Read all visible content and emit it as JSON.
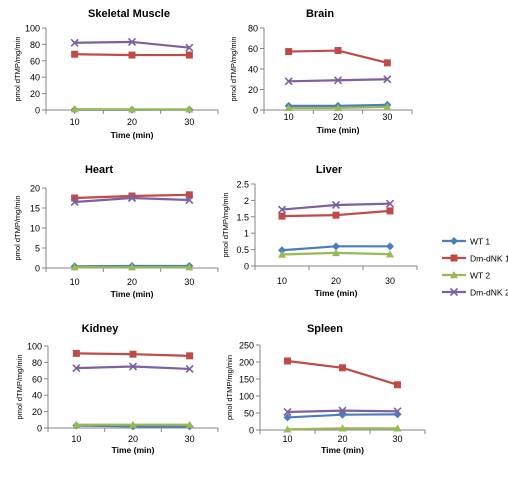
{
  "x_label": "Time (min)",
  "y_label": "pmol dTMP/mg/min",
  "legend": [
    {
      "name": "WT 1",
      "color": "#4a7ebb",
      "marker": "diamond"
    },
    {
      "name": "Dm-dNK 1",
      "color": "#be4b48",
      "marker": "square"
    },
    {
      "name": "WT 2",
      "color": "#98b954",
      "marker": "triangle"
    },
    {
      "name": "Dm-dNK 2",
      "color": "#7d60a0",
      "marker": "x"
    }
  ],
  "chart_data": [
    {
      "type": "line",
      "title": "Skeletal Muscle",
      "x": [
        10,
        20,
        30
      ],
      "ylim": [
        0,
        100
      ],
      "yticks": [
        0,
        20,
        40,
        60,
        80,
        100
      ],
      "xlabel": "Time (min)",
      "ylabel": "pmol dTMP/mg/min",
      "series": [
        {
          "name": "WT 1",
          "values": [
            0.5,
            0.3,
            0.4
          ]
        },
        {
          "name": "Dm-dNK 1",
          "values": [
            68,
            67,
            67
          ]
        },
        {
          "name": "WT 2",
          "values": [
            1,
            0.8,
            0.8
          ]
        },
        {
          "name": "Dm-dNK 2",
          "values": [
            82,
            83,
            76
          ]
        }
      ]
    },
    {
      "type": "line",
      "title": "Brain",
      "x": [
        10,
        20,
        30
      ],
      "ylim": [
        0,
        80
      ],
      "yticks": [
        0,
        20,
        40,
        60,
        80
      ],
      "xlabel": "Time (min)",
      "ylabel": "pmol dTMP/mg/min",
      "series": [
        {
          "name": "WT 1",
          "values": [
            4,
            4,
            5
          ]
        },
        {
          "name": "Dm-dNK 1",
          "values": [
            57,
            58,
            46
          ]
        },
        {
          "name": "WT 2",
          "values": [
            2,
            2,
            3
          ]
        },
        {
          "name": "Dm-dNK 2",
          "values": [
            28,
            29,
            30
          ]
        }
      ]
    },
    {
      "type": "line",
      "title": "Heart",
      "x": [
        10,
        20,
        30
      ],
      "ylim": [
        0,
        20
      ],
      "yticks": [
        0,
        5,
        10,
        15,
        20
      ],
      "xlabel": "Time (min)",
      "ylabel": "pmol dTMP/mg/min",
      "series": [
        {
          "name": "WT 1",
          "values": [
            0.4,
            0.5,
            0.5
          ]
        },
        {
          "name": "Dm-dNK 1",
          "values": [
            17.5,
            18,
            18.3
          ]
        },
        {
          "name": "WT 2",
          "values": [
            0.2,
            0.2,
            0.2
          ]
        },
        {
          "name": "Dm-dNK 2",
          "values": [
            16.5,
            17.5,
            17
          ]
        }
      ]
    },
    {
      "type": "line",
      "title": "Liver",
      "x": [
        10,
        20,
        30
      ],
      "ylim": [
        0,
        2.5
      ],
      "yticks": [
        0,
        0.5,
        1,
        1.5,
        2,
        2.5
      ],
      "xlabel": "Time (min)",
      "ylabel": "pmol dTMP/mg/min",
      "series": [
        {
          "name": "WT 1",
          "values": [
            0.48,
            0.6,
            0.6
          ]
        },
        {
          "name": "Dm-dNK 1",
          "values": [
            1.52,
            1.55,
            1.68
          ]
        },
        {
          "name": "WT 2",
          "values": [
            0.35,
            0.4,
            0.36
          ]
        },
        {
          "name": "Dm-dNK 2",
          "values": [
            1.72,
            1.86,
            1.9
          ]
        }
      ]
    },
    {
      "type": "line",
      "title": "Kidney",
      "x": [
        10,
        20,
        30
      ],
      "ylim": [
        0,
        100
      ],
      "yticks": [
        0,
        20,
        40,
        60,
        80,
        100
      ],
      "xlabel": "Time (min)",
      "ylabel": "pmol dTMP/mg/min",
      "series": [
        {
          "name": "WT 1",
          "values": [
            3,
            2,
            2
          ]
        },
        {
          "name": "Dm-dNK 1",
          "values": [
            91,
            90,
            88
          ]
        },
        {
          "name": "WT 2",
          "values": [
            4,
            4,
            4
          ]
        },
        {
          "name": "Dm-dNK 2",
          "values": [
            73,
            75,
            72
          ]
        }
      ]
    },
    {
      "type": "line",
      "title": "Spleen",
      "x": [
        10,
        20,
        30
      ],
      "ylim": [
        0,
        250
      ],
      "yticks": [
        0,
        50,
        100,
        150,
        200,
        250
      ],
      "xlabel": "Time (min)",
      "ylabel": "pmol dTMP/mg/min",
      "series": [
        {
          "name": "WT 1",
          "values": [
            37,
            45,
            46
          ]
        },
        {
          "name": "Dm-dNK 1",
          "values": [
            203,
            183,
            133
          ]
        },
        {
          "name": "WT 2",
          "values": [
            2,
            5,
            5
          ]
        },
        {
          "name": "Dm-dNK 2",
          "values": [
            53,
            57,
            55
          ]
        }
      ]
    }
  ]
}
